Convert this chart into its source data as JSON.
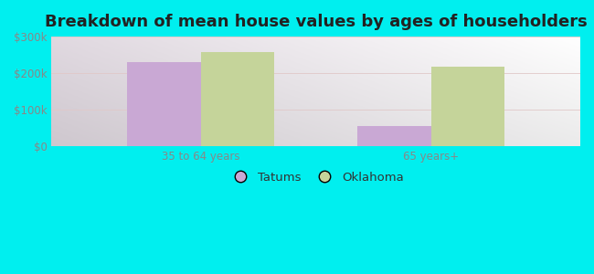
{
  "title": "Breakdown of mean house values by ages of householders",
  "categories": [
    "35 to 64 years",
    "65 years+"
  ],
  "tatums_values": [
    230000,
    55000
  ],
  "oklahoma_values": [
    258000,
    218000
  ],
  "tatums_color": "#c9a8d4",
  "oklahoma_color": "#c5d49a",
  "background_color": "#00efef",
  "ylim": [
    0,
    300000
  ],
  "yticks": [
    0,
    100000,
    200000,
    300000
  ],
  "ytick_labels": [
    "$0",
    "$100k",
    "$200k",
    "$300k"
  ],
  "legend_labels": [
    "Tatums",
    "Oklahoma"
  ],
  "bar_width": 0.32,
  "title_fontsize": 13,
  "tick_fontsize": 8.5,
  "legend_fontsize": 9.5,
  "tick_color": "#888888",
  "legend_text_color": "#333333"
}
